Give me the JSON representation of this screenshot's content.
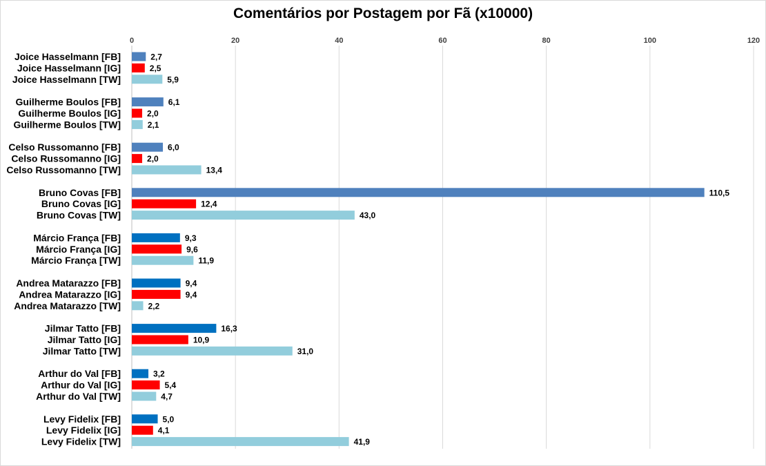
{
  "chart_data": {
    "type": "bar",
    "orientation": "horizontal",
    "title": "Comentários por Postagem por Fã (x10000)",
    "xlabel": "",
    "ylabel": "",
    "xlim": [
      0,
      120
    ],
    "x_ticks": [
      "0",
      "20",
      "40",
      "60",
      "80",
      "100",
      "120"
    ],
    "x_axis_position": "top",
    "grid": true,
    "legend": "none",
    "groups": [
      {
        "bars": [
          {
            "label": "Joice Hasselmann [FB]",
            "value": 2.7,
            "display": "2,7",
            "color": "#4f81bd"
          },
          {
            "label": "Joice Hasselmann [IG]",
            "value": 2.5,
            "display": "2,5",
            "color": "#ff0000"
          },
          {
            "label": "Joice Hasselmann [TW]",
            "value": 5.9,
            "display": "5,9",
            "color": "#92cddc"
          }
        ]
      },
      {
        "bars": [
          {
            "label": "Guilherme Boulos [FB]",
            "value": 6.1,
            "display": "6,1",
            "color": "#4f81bd"
          },
          {
            "label": "Guilherme Boulos [IG]",
            "value": 2.0,
            "display": "2,0",
            "color": "#ff0000"
          },
          {
            "label": "Guilherme Boulos [TW]",
            "value": 2.1,
            "display": "2,1",
            "color": "#92cddc"
          }
        ]
      },
      {
        "bars": [
          {
            "label": "Celso Russomanno [FB]",
            "value": 6.0,
            "display": "6,0",
            "color": "#4f81bd"
          },
          {
            "label": "Celso Russomanno [IG]",
            "value": 2.0,
            "display": "2,0",
            "color": "#ff0000"
          },
          {
            "label": "Celso Russomanno [TW]",
            "value": 13.4,
            "display": "13,4",
            "color": "#92cddc"
          }
        ]
      },
      {
        "bars": [
          {
            "label": "Bruno Covas [FB]",
            "value": 110.5,
            "display": "110,5",
            "color": "#4f81bd"
          },
          {
            "label": "Bruno Covas [IG]",
            "value": 12.4,
            "display": "12,4",
            "color": "#ff0000"
          },
          {
            "label": "Bruno Covas [TW]",
            "value": 43.0,
            "display": "43,0",
            "color": "#92cddc"
          }
        ]
      },
      {
        "bars": [
          {
            "label": "Márcio França [FB]",
            "value": 9.3,
            "display": "9,3",
            "color": "#0070c0"
          },
          {
            "label": "Márcio França [IG]",
            "value": 9.6,
            "display": "9,6",
            "color": "#ff0000"
          },
          {
            "label": "Márcio França [TW]",
            "value": 11.9,
            "display": "11,9",
            "color": "#92cddc"
          }
        ]
      },
      {
        "bars": [
          {
            "label": "Andrea Matarazzo [FB]",
            "value": 9.4,
            "display": "9,4",
            "color": "#0070c0"
          },
          {
            "label": "Andrea Matarazzo [IG]",
            "value": 9.4,
            "display": "9,4",
            "color": "#ff0000"
          },
          {
            "label": "Andrea Matarazzo [TW]",
            "value": 2.2,
            "display": "2,2",
            "color": "#92cddc"
          }
        ]
      },
      {
        "bars": [
          {
            "label": "Jilmar Tatto [FB]",
            "value": 16.3,
            "display": "16,3",
            "color": "#0070c0"
          },
          {
            "label": "Jilmar Tatto [IG]",
            "value": 10.9,
            "display": "10,9",
            "color": "#ff0000"
          },
          {
            "label": "Jilmar Tatto [TW]",
            "value": 31.0,
            "display": "31,0",
            "color": "#92cddc"
          }
        ]
      },
      {
        "bars": [
          {
            "label": "Arthur do Val [FB]",
            "value": 3.2,
            "display": "3,2",
            "color": "#0070c0"
          },
          {
            "label": "Arthur do Val [IG]",
            "value": 5.4,
            "display": "5,4",
            "color": "#ff0000"
          },
          {
            "label": "Arthur do Val [TW]",
            "value": 4.7,
            "display": "4,7",
            "color": "#92cddc"
          }
        ]
      },
      {
        "bars": [
          {
            "label": "Levy Fidelix [FB]",
            "value": 5.0,
            "display": "5,0",
            "color": "#0070c0"
          },
          {
            "label": "Levy Fidelix [IG]",
            "value": 4.1,
            "display": "4,1",
            "color": "#ff0000"
          },
          {
            "label": "Levy Fidelix [TW]",
            "value": 41.9,
            "display": "41,9",
            "color": "#92cddc"
          }
        ]
      }
    ]
  }
}
